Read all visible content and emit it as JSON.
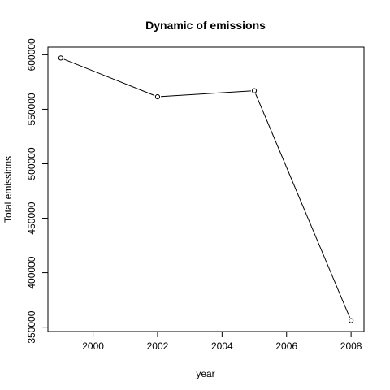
{
  "chart_data": {
    "type": "line",
    "title": "Dynamic of emissions",
    "xlabel": "year",
    "ylabel": "Total emissions",
    "x": [
      1999,
      2002,
      2005,
      2008
    ],
    "series": [
      {
        "values": [
          597000,
          561500,
          567000,
          356000
        ]
      }
    ],
    "xlim": [
      1998.6,
      2008.4
    ],
    "ylim": [
      346000,
      607000
    ],
    "x_ticks": [
      2000,
      2002,
      2004,
      2006,
      2008
    ],
    "y_ticks": [
      350000,
      400000,
      450000,
      500000,
      550000,
      600000
    ],
    "x_tick_labels": [
      "2000",
      "2002",
      "2004",
      "2006",
      "2008"
    ],
    "y_tick_labels": [
      "350000",
      "400000",
      "450000",
      "500000",
      "550000",
      "600000"
    ],
    "marker": "open-circle",
    "line_color": "#000000",
    "grid": false,
    "legend": "none"
  }
}
